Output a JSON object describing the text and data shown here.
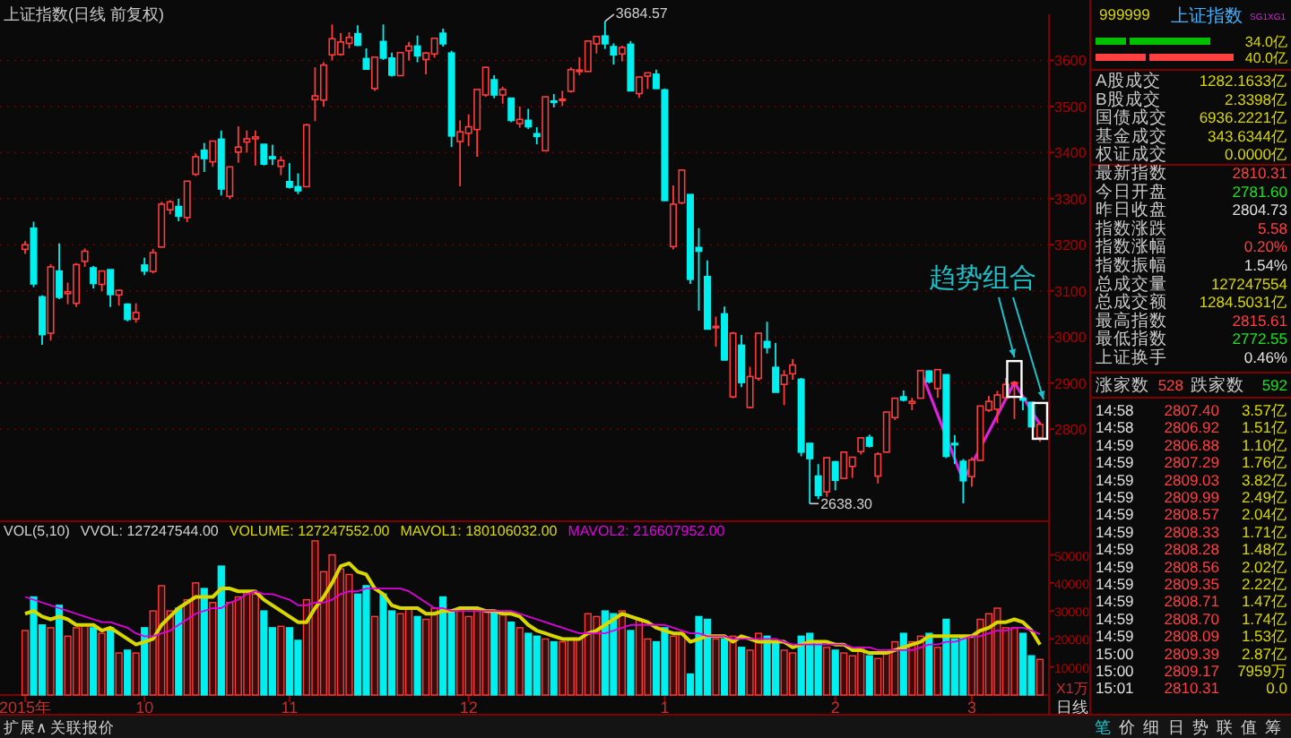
{
  "chart_data": [
    {
      "type": "candlestick",
      "title": "上证指数(日线 前复权)",
      "categories": [
        null,
        null,
        null,
        null,
        null,
        null,
        null,
        null,
        null,
        null,
        null,
        null,
        null,
        null,
        null,
        null,
        null,
        null,
        null,
        null,
        null,
        null,
        null,
        null,
        null,
        null,
        null,
        null,
        null,
        null,
        null,
        null,
        null,
        null,
        null,
        null,
        null,
        null,
        null,
        null,
        null,
        null,
        null,
        null,
        null,
        null,
        null,
        null,
        null,
        null,
        null,
        null,
        null,
        null,
        null,
        null,
        null,
        null,
        null,
        null,
        null,
        null,
        null,
        null,
        null,
        null,
        null,
        null,
        null,
        null,
        null,
        null,
        null,
        null,
        null,
        null,
        null,
        null,
        null,
        null,
        null,
        null,
        null,
        null,
        null,
        null,
        null,
        null,
        null,
        null,
        null,
        null,
        null,
        null,
        null,
        null,
        null,
        null,
        null,
        null,
        null,
        null,
        null,
        null,
        null,
        null,
        null,
        null,
        null,
        null,
        null,
        null,
        null,
        null,
        null,
        null,
        null,
        null,
        null,
        null
      ],
      "ohlc": [
        [
          3190,
          3208,
          3180,
          3200
        ],
        [
          3236,
          3250,
          3108,
          3115
        ],
        [
          3087,
          3090,
          2983,
          3005
        ],
        [
          3008,
          3158,
          2992,
          3152
        ],
        [
          3143,
          3203,
          3082,
          3086
        ],
        [
          3094,
          3118,
          3071,
          3098
        ],
        [
          3073,
          3160,
          3065,
          3157
        ],
        [
          3164,
          3192,
          3152,
          3186
        ],
        [
          3150,
          3154,
          3105,
          3116
        ],
        [
          3114,
          3144,
          3099,
          3143
        ],
        [
          3146,
          3146,
          3065,
          3092
        ],
        [
          3091,
          3103,
          3068,
          3101
        ],
        [
          3071,
          3073,
          3034,
          3038
        ],
        [
          3039,
          3073,
          3031,
          3053
        ],
        [
          3156,
          3172,
          3134,
          3143
        ],
        [
          3142,
          3191,
          3138,
          3183
        ],
        [
          3195,
          3293,
          3194,
          3288
        ],
        [
          3276,
          3297,
          3266,
          3293
        ],
        [
          3283,
          3300,
          3251,
          3262
        ],
        [
          3259,
          3338,
          3249,
          3338
        ],
        [
          3353,
          3398,
          3349,
          3391
        ],
        [
          3405,
          3421,
          3358,
          3387
        ],
        [
          3380,
          3425,
          3369,
          3425
        ],
        [
          3429,
          3448,
          3307,
          3321
        ],
        [
          3305,
          3370,
          3299,
          3369
        ],
        [
          3401,
          3457,
          3378,
          3412
        ],
        [
          3423,
          3448,
          3400,
          3430
        ],
        [
          3430,
          3448,
          3372,
          3434
        ],
        [
          3418,
          3418,
          3372,
          3375
        ],
        [
          3391,
          3417,
          3373,
          3387
        ],
        [
          3370,
          3392,
          3351,
          3383
        ],
        [
          3337,
          3377,
          3322,
          3325
        ],
        [
          3326,
          3355,
          3310,
          3317
        ],
        [
          3326,
          3463,
          3326,
          3460
        ],
        [
          3515,
          3585,
          3468,
          3523
        ],
        [
          3514,
          3596,
          3500,
          3590
        ],
        [
          3612,
          3678,
          3600,
          3647
        ],
        [
          3613,
          3659,
          3610,
          3640
        ],
        [
          3637,
          3661,
          3626,
          3650
        ],
        [
          3658,
          3676,
          3631,
          3633
        ],
        [
          3604,
          3626,
          3580,
          3581
        ],
        [
          3539,
          3607,
          3534,
          3607
        ],
        [
          3641,
          3678,
          3601,
          3605
        ],
        [
          3605,
          3617,
          3565,
          3568
        ],
        [
          3567,
          3617,
          3567,
          3617
        ],
        [
          3621,
          3640,
          3600,
          3631
        ],
        [
          3631,
          3654,
          3596,
          3610
        ],
        [
          3602,
          3618,
          3570,
          3616
        ],
        [
          3614,
          3648,
          3606,
          3648
        ],
        [
          3659,
          3669,
          3630,
          3636
        ],
        [
          3616,
          3621,
          3412,
          3436
        ],
        [
          3424,
          3470,
          3327,
          3445
        ],
        [
          3442,
          3483,
          3414,
          3456
        ],
        [
          3450,
          3538,
          3391,
          3537
        ],
        [
          3525,
          3586,
          3521,
          3585
        ],
        [
          3558,
          3568,
          3518,
          3525
        ],
        [
          3525,
          3543,
          3506,
          3537
        ],
        [
          3518,
          3518,
          3466,
          3470
        ],
        [
          3463,
          3500,
          3454,
          3472
        ],
        [
          3470,
          3495,
          3451,
          3456
        ],
        [
          3441,
          3455,
          3418,
          3435
        ],
        [
          3404,
          3521,
          3403,
          3521
        ],
        [
          3512,
          3527,
          3498,
          3510
        ],
        [
          3514,
          3534,
          3501,
          3516
        ],
        [
          3533,
          3585,
          3530,
          3580
        ],
        [
          3576,
          3607,
          3568,
          3579
        ],
        [
          3576,
          3643,
          3576,
          3642
        ],
        [
          3636,
          3653,
          3615,
          3652
        ],
        [
          3653,
          3684.57,
          3625,
          3636
        ],
        [
          3630,
          3637,
          3591,
          3612
        ],
        [
          3614,
          3632,
          3598,
          3628
        ],
        [
          3635,
          3642,
          3533,
          3534
        ],
        [
          3528,
          3564,
          3519,
          3564
        ],
        [
          3566,
          3573,
          3538,
          3573
        ],
        [
          3570,
          3580,
          3538,
          3539
        ],
        [
          3536,
          3539,
          3295,
          3296
        ],
        [
          3196,
          3329,
          3190,
          3288
        ],
        [
          3291,
          3362,
          3288,
          3362
        ],
        [
          3309,
          3309,
          3115,
          3125
        ],
        [
          3194,
          3236,
          3057,
          3186
        ],
        [
          3131,
          3166,
          3016,
          3017
        ],
        [
          3023,
          3044,
          2979,
          3023
        ],
        [
          3050,
          3066,
          2949,
          2950
        ],
        [
          2870,
          3011,
          2867,
          3008
        ],
        [
          2982,
          3004,
          2891,
          2901
        ],
        [
          2847,
          2935,
          2845,
          2914
        ],
        [
          2910,
          3008,
          2905,
          3008
        ],
        [
          2990,
          3033,
          2964,
          2977
        ],
        [
          2934,
          2987,
          2880,
          2880
        ],
        [
          2897,
          2928,
          2852,
          2917
        ],
        [
          2920,
          2952,
          2907,
          2939
        ],
        [
          2908,
          2911,
          2741,
          2750
        ],
        [
          2769,
          2770,
          2638.3,
          2736
        ],
        [
          2698,
          2724,
          2648,
          2656
        ],
        [
          2664,
          2739,
          2653,
          2738
        ],
        [
          2729,
          2731,
          2667,
          2689
        ],
        [
          2693,
          2751,
          2693,
          2750
        ],
        [
          2719,
          2740,
          2694,
          2739
        ],
        [
          2751,
          2783,
          2745,
          2781
        ],
        [
          2782,
          2788,
          2760,
          2763
        ],
        [
          2698,
          2750,
          2682,
          2746
        ],
        [
          2750,
          2837,
          2749,
          2837
        ],
        [
          2825,
          2868,
          2820,
          2867
        ],
        [
          2870,
          2884,
          2860,
          2863
        ],
        [
          2856,
          2868,
          2841,
          2860
        ],
        [
          2867,
          2928,
          2867,
          2927
        ],
        [
          2926,
          2927,
          2899,
          2903
        ],
        [
          2888,
          2929,
          2868,
          2929
        ],
        [
          2918,
          2919,
          2737,
          2741
        ],
        [
          2769,
          2787,
          2724,
          2767
        ],
        [
          2730,
          2735,
          2639,
          2688
        ],
        [
          2697,
          2739,
          2675,
          2733
        ],
        [
          2732,
          2850,
          2732,
          2850
        ],
        [
          2841,
          2872,
          2837,
          2860
        ],
        [
          2843,
          2883,
          2813,
          2874
        ],
        [
          2868,
          2911,
          2864,
          2897
        ],
        [
          2900,
          2904,
          2822,
          2901
        ],
        [
          2867,
          2869,
          2841,
          2863
        ],
        [
          2858,
          2858,
          2804,
          2805
        ],
        [
          2781.6,
          2815.61,
          2772.55,
          2810.31
        ]
      ],
      "series": [
        {
          "type": "line",
          "color": "#e020e0",
          "values": [
            null,
            null,
            null,
            null,
            null,
            null,
            null,
            null,
            null,
            null,
            null,
            null,
            null,
            null,
            null,
            null,
            null,
            null,
            null,
            null,
            null,
            null,
            null,
            null,
            null,
            null,
            null,
            null,
            null,
            null,
            null,
            null,
            null,
            null,
            null,
            null,
            null,
            null,
            null,
            null,
            null,
            null,
            null,
            null,
            null,
            null,
            null,
            null,
            null,
            null,
            null,
            null,
            null,
            null,
            null,
            null,
            null,
            null,
            null,
            null,
            null,
            null,
            null,
            null,
            null,
            null,
            null,
            null,
            null,
            null,
            null,
            null,
            null,
            null,
            null,
            null,
            null,
            null,
            null,
            null,
            null,
            null,
            null,
            null,
            null,
            null,
            null,
            null,
            null,
            null,
            null,
            null,
            null,
            null,
            null,
            null,
            null,
            null,
            null,
            null,
            null,
            null,
            null,
            null,
            null,
            2927,
            null,
            null,
            null,
            null,
            2688,
            null,
            null,
            null,
            null,
            null,
            2901,
            null,
            null,
            2810
          ]
        }
      ],
      "ylim": [
        2600,
        3700
      ],
      "yticks": [
        2800,
        2900,
        3000,
        3100,
        3200,
        3300,
        3400,
        3500,
        3600
      ],
      "grid": "y",
      "tick_labels": "y",
      "annotations": [
        "3684.57",
        "2638.30",
        "趋势组合"
      ]
    },
    {
      "type": "bar",
      "title": "VOL(5,10)",
      "categories": [
        "2015年",
        null,
        null,
        null,
        null,
        null,
        null,
        null,
        null,
        null,
        null,
        null,
        null,
        null,
        "10",
        null,
        null,
        null,
        null,
        null,
        null,
        null,
        null,
        null,
        null,
        null,
        null,
        null,
        null,
        null,
        null,
        "11",
        null,
        null,
        null,
        null,
        null,
        null,
        null,
        null,
        null,
        null,
        null,
        null,
        null,
        null,
        null,
        null,
        null,
        null,
        null,
        null,
        "12",
        null,
        null,
        null,
        null,
        null,
        null,
        null,
        null,
        null,
        null,
        null,
        null,
        null,
        null,
        null,
        null,
        null,
        null,
        null,
        null,
        null,
        null,
        "1",
        null,
        null,
        null,
        null,
        null,
        null,
        null,
        null,
        null,
        null,
        null,
        null,
        null,
        null,
        null,
        null,
        null,
        null,
        null,
        "2",
        null,
        null,
        null,
        null,
        null,
        null,
        null,
        null,
        null,
        null,
        null,
        null,
        null,
        null,
        null,
        "3",
        null,
        null,
        null,
        null,
        null,
        null,
        null,
        null
      ],
      "series": [
        {
          "values": [
            23000,
            35000,
            25000,
            24000,
            32000,
            21000,
            24000,
            25000,
            24000,
            22000,
            24000,
            15000,
            16000,
            15000,
            24000,
            30000,
            39000,
            30000,
            31000,
            34000,
            40000,
            38000,
            33000,
            46000,
            33000,
            35000,
            37000,
            36000,
            30000,
            24000,
            24500,
            24000,
            19500,
            34000,
            55000,
            44000,
            50000,
            45000,
            43000,
            36000,
            39000,
            28000,
            36000,
            30000,
            29000,
            31000,
            28000,
            27000,
            31000,
            35000,
            30000,
            31000,
            28000,
            30000,
            30000,
            30000,
            29000,
            26000,
            24000,
            22000,
            21000,
            20000,
            19000,
            19000,
            20000,
            20000,
            29000,
            28000,
            30000,
            29000,
            30000,
            23000,
            27000,
            20000,
            19000,
            24000,
            21000,
            22000,
            7500,
            28000,
            27000,
            20000,
            20000,
            21000,
            17000,
            16000,
            22000,
            21000,
            19000,
            16000,
            15000,
            21000,
            22000,
            19000,
            17000,
            16000,
            15000,
            14000,
            17000,
            14000,
            13000,
            15000,
            19000,
            22000,
            19000,
            21000,
            22000,
            17000,
            27000,
            20000,
            21000,
            21000,
            27000,
            29000,
            31000,
            24000,
            24000,
            22000,
            14000,
            12700
          ],
          "colors": [
            "#ff3c3c",
            "#00f0f0",
            "#00f0f0",
            "#ff3c3c",
            "#00f0f0",
            "#ff3c3c",
            "#ff3c3c",
            "#ff3c3c",
            "#00f0f0",
            "#ff3c3c",
            "#00f0f0",
            "#ff3c3c",
            "#00f0f0",
            "#ff3c3c",
            "#00f0f0",
            "#ff3c3c",
            "#ff3c3c",
            "#ff3c3c",
            "#00f0f0",
            "#ff3c3c",
            "#ff3c3c",
            "#00f0f0",
            "#ff3c3c",
            "#00f0f0",
            "#ff3c3c",
            "#ff3c3c",
            "#ff3c3c",
            "#ff3c3c",
            "#00f0f0",
            "#00f0f0",
            "#ff3c3c",
            "#00f0f0",
            "#00f0f0",
            "#ff3c3c",
            "#ff3c3c",
            "#ff3c3c",
            "#ff3c3c",
            "#ff3c3c",
            "#ff3c3c",
            "#00f0f0",
            "#00f0f0",
            "#ff3c3c",
            "#00f0f0",
            "#00f0f0",
            "#ff3c3c",
            "#ff3c3c",
            "#00f0f0",
            "#ff3c3c",
            "#ff3c3c",
            "#00f0f0",
            "#00f0f0",
            "#ff3c3c",
            "#ff3c3c",
            "#ff3c3c",
            "#ff3c3c",
            "#00f0f0",
            "#ff3c3c",
            "#00f0f0",
            "#ff3c3c",
            "#00f0f0",
            "#00f0f0",
            "#ff3c3c",
            "#00f0f0",
            "#ff3c3c",
            "#ff3c3c",
            "#ff3c3c",
            "#ff3c3c",
            "#ff3c3c",
            "#00f0f0",
            "#00f0f0",
            "#ff3c3c",
            "#00f0f0",
            "#ff3c3c",
            "#ff3c3c",
            "#00f0f0",
            "#00f0f0",
            "#ff3c3c",
            "#ff3c3c",
            "#00f0f0",
            "#00f0f0",
            "#00f0f0",
            "#ff3c3c",
            "#00f0f0",
            "#ff3c3c",
            "#00f0f0",
            "#ff3c3c",
            "#ff3c3c",
            "#00f0f0",
            "#00f0f0",
            "#ff3c3c",
            "#ff3c3c",
            "#00f0f0",
            "#00f0f0",
            "#00f0f0",
            "#ff3c3c",
            "#00f0f0",
            "#ff3c3c",
            "#ff3c3c",
            "#ff3c3c",
            "#00f0f0",
            "#ff3c3c",
            "#ff3c3c",
            "#ff3c3c",
            "#00f0f0",
            "#ff3c3c",
            "#ff3c3c",
            "#00f0f0",
            "#ff3c3c",
            "#00f0f0",
            "#00f0f0",
            "#00f0f0",
            "#ff3c3c",
            "#ff3c3c",
            "#ff3c3c",
            "#ff3c3c",
            "#ff3c3c",
            "#ff3c3c",
            "#00f0f0",
            "#00f0f0",
            "#ff3c3c"
          ]
        },
        {
          "type": "line",
          "name": "MAVOL1: 180106032.00",
          "color": "#d8d800",
          "values": [
            29000,
            30000,
            28000,
            27000,
            28000,
            27000,
            25000,
            25000,
            25000,
            23000,
            24000,
            22000,
            20000,
            18000,
            19000,
            20000,
            25000,
            28000,
            31000,
            33000,
            35000,
            35000,
            35000,
            38000,
            38000,
            37000,
            37000,
            37000,
            34000,
            32000,
            30000,
            28000,
            26000,
            26000,
            31000,
            35000,
            40000,
            46000,
            47000,
            44000,
            43000,
            38000,
            36000,
            32000,
            31000,
            31000,
            31000,
            29000,
            29000,
            30000,
            30000,
            31000,
            31000,
            31000,
            30000,
            30000,
            29000,
            29000,
            28000,
            25000,
            23000,
            22000,
            21000,
            20000,
            20000,
            20000,
            22000,
            23000,
            25000,
            27000,
            29000,
            28000,
            27000,
            26000,
            24000,
            23000,
            22000,
            22000,
            19000,
            20000,
            21000,
            21000,
            21000,
            19000,
            21000,
            20000,
            19000,
            19000,
            19000,
            19000,
            17000,
            18000,
            19000,
            19000,
            19000,
            18000,
            18000,
            16000,
            16000,
            15000,
            15000,
            15000,
            16000,
            17000,
            18000,
            19000,
            21000,
            21000,
            21000,
            21000,
            21000,
            21000,
            23000,
            24000,
            26000,
            26000,
            27000,
            26000,
            23000,
            18000
          ]
        },
        {
          "type": "line",
          "name": "MAVOL2: 216607952.00",
          "color": "#e000e0",
          "values": [
            35000,
            34000,
            33000,
            32000,
            31000,
            30000,
            29000,
            28000,
            27000,
            26000,
            26000,
            25000,
            24000,
            22000,
            21000,
            21000,
            22000,
            23000,
            25000,
            27000,
            29000,
            30000,
            31000,
            31000,
            33000,
            34000,
            36000,
            37000,
            36000,
            36000,
            35000,
            34000,
            32000,
            32000,
            33000,
            33000,
            34000,
            36000,
            37000,
            37000,
            38000,
            38000,
            38000,
            38000,
            38000,
            37000,
            35000,
            33000,
            31000,
            31000,
            30000,
            30000,
            30000,
            30000,
            30000,
            30000,
            30000,
            30000,
            29000,
            28000,
            27000,
            26000,
            25000,
            24000,
            23000,
            22000,
            22000,
            22000,
            22000,
            23000,
            24000,
            25000,
            25000,
            25000,
            25000,
            25000,
            24000,
            23000,
            22000,
            22000,
            21000,
            21000,
            21000,
            20000,
            20000,
            20000,
            20000,
            20000,
            20000,
            19000,
            18000,
            18000,
            18000,
            18000,
            18000,
            18000,
            18000,
            17000,
            17000,
            17000,
            16000,
            16000,
            16000,
            16000,
            16000,
            17000,
            18000,
            18000,
            19000,
            19000,
            20000,
            21000,
            21000,
            22000,
            23000,
            23000,
            24000,
            24000,
            23000,
            21700
          ]
        }
      ],
      "ylim": [
        0,
        62000
      ],
      "yticks": [
        10000,
        20000,
        30000,
        40000,
        50000
      ],
      "ylabel": "X1万",
      "xlabel": "日线",
      "legend": "top left",
      "annotations": [
        "VVOL: 127247544.00",
        "VOLUME: 127247552.00"
      ]
    },
    {
      "type": "other",
      "title": "上证指数",
      "subtitle": "999999",
      "annotations": [
        "SG1",
        "XG1",
        "34.0亿",
        "40.0亿",
        "A股成交",
        "1282.1633亿",
        "B股成交",
        "2.3398亿",
        "国债成交",
        "6936.2221亿",
        "基金成交",
        "343.6344亿",
        "权证成交",
        "0.0000亿",
        "最新指数",
        "2810.31",
        "今日开盘",
        "2781.60",
        "昨日收盘",
        "2804.73",
        "指数涨跌",
        "5.58",
        "指数涨幅",
        "0.20%",
        "指数振幅",
        "1.54%",
        "总成交量",
        "127247554",
        "总成交额",
        "1284.5031亿",
        "最高指数",
        "2815.61",
        "最低指数",
        "2772.55",
        "上证换手",
        "0.46%",
        "涨家数",
        "528",
        "跌家数",
        "592",
        "14:58",
        "2807.40",
        "3.57亿",
        "14:58",
        "2806.92",
        "1.51亿",
        "14:59",
        "2806.88",
        "1.10亿",
        "14:59",
        "2807.29",
        "1.76亿",
        "14:59",
        "2809.03",
        "3.82亿",
        "14:59",
        "2809.99",
        "2.49亿",
        "14:59",
        "2808.57",
        "2.04亿",
        "14:59",
        "2808.33",
        "1.71亿",
        "14:59",
        "2808.28",
        "1.48亿",
        "14:59",
        "2808.56",
        "2.02亿",
        "14:59",
        "2809.35",
        "2.22亿",
        "14:59",
        "2808.71",
        "1.47亿",
        "14:59",
        "2808.70",
        "1.74亿",
        "14:59",
        "2808.09",
        "1.53亿",
        "15:00",
        "2809.39",
        "2.87亿",
        "15:00",
        "2809.17",
        "7959万",
        "15:01",
        "2810.31",
        "0.0",
        "扩展∧",
        "关联报价",
        "笔",
        "价",
        "细",
        "日",
        "势",
        "联",
        "值",
        "筹"
      ]
    }
  ]
}
